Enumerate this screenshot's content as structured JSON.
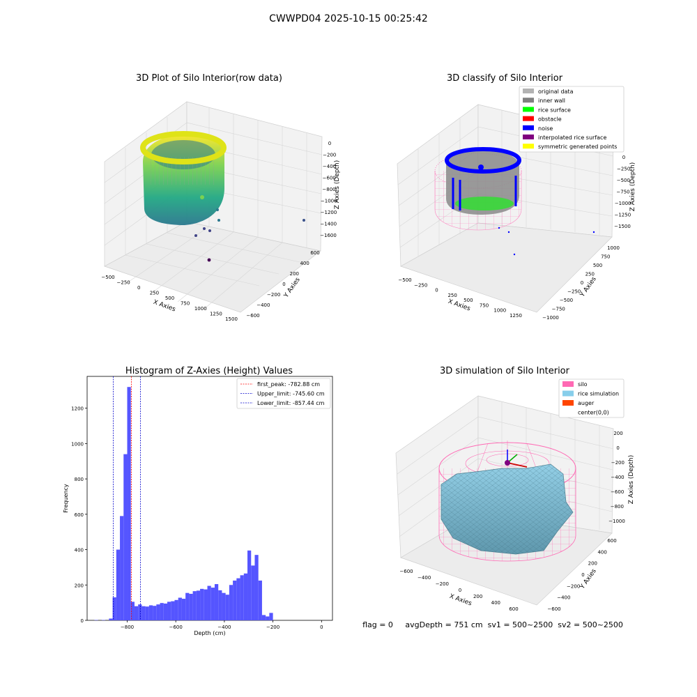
{
  "suptitle": "CWWPD04 2025-10-15 00:25:42",
  "footer": "flag = 0     avgDepth = 751 cm  sv1 = 500~2500  sv2 = 500~2500",
  "colors": {
    "silo": "#ff69b4",
    "rice": "#87ceeb",
    "auger": "#ff4500",
    "hist_bar": "#5555ff",
    "first_peak_line": "#ff0000",
    "limit_line": "#0000cc",
    "original": "#b3b3b3",
    "inner_wall": "#808080",
    "rice_surface": "#00ff00",
    "obstacle": "#ff0000",
    "noise": "#0000ff",
    "interp": "#800080",
    "symmetric": "#ffff00"
  },
  "chart_data": [
    {
      "type": "scatter",
      "title": "3D Plot of Silo Interior(row data)",
      "xlabel": "X Axies",
      "ylabel": "Y Axies",
      "zlabel": "Z Axies (Depth)",
      "x_ticks": [
        "−500",
        "−250",
        "0",
        "250",
        "500",
        "750",
        "1000",
        "1250",
        "1500"
      ],
      "y_ticks": [
        "−600",
        "−400",
        "−200",
        "0",
        "200",
        "400",
        "600"
      ],
      "z_ticks": [
        "0",
        "−200",
        "−400",
        "−600",
        "−800",
        "−1000",
        "−1200",
        "−1400",
        "−1600"
      ],
      "colormap": "viridis"
    },
    {
      "type": "scatter",
      "title": "3D classify of Silo Interior",
      "xlabel": "X Axies",
      "ylabel": "Y Axies",
      "zlabel": "Z Axies (Depth)",
      "x_ticks": [
        "−500",
        "−250",
        "0",
        "250",
        "500",
        "750",
        "1000",
        "1250"
      ],
      "y_ticks": [
        "−1000",
        "−750",
        "−500",
        "−250",
        "0",
        "250",
        "500",
        "750",
        "1000"
      ],
      "z_ticks": [
        "0",
        "−250",
        "−500",
        "−750",
        "−1000",
        "−1250",
        "−1500"
      ],
      "legend_position": "top-right",
      "legend": [
        {
          "label": "original data",
          "color": "#b3b3b3"
        },
        {
          "label": "inner wall",
          "color": "#808080"
        },
        {
          "label": "rice surface",
          "color": "#00ff00"
        },
        {
          "label": "obstacle",
          "color": "#ff0000"
        },
        {
          "label": "noise",
          "color": "#0000ff"
        },
        {
          "label": "interpolated rice surface",
          "color": "#800080"
        },
        {
          "label": "symmetric generated points",
          "color": "#ffff00"
        }
      ]
    },
    {
      "type": "bar",
      "title": "Histogram of Z-Axies (Height) Values",
      "xlabel": "Depth (cm)",
      "ylabel": "Frequency",
      "xlim": [
        -965,
        45
      ],
      "ylim": [
        0,
        1380
      ],
      "x_ticks": [
        -800,
        -600,
        -400,
        -200,
        0
      ],
      "y_ticks": [
        0,
        200,
        400,
        600,
        800,
        1000,
        1200
      ],
      "bin_width": 15,
      "bins": [
        [
          -935,
          2
        ],
        [
          -920,
          0
        ],
        [
          -905,
          2
        ],
        [
          -890,
          0
        ],
        [
          -875,
          10
        ],
        [
          -860,
          130
        ],
        [
          -845,
          400
        ],
        [
          -830,
          590
        ],
        [
          -815,
          940
        ],
        [
          -800,
          1320
        ],
        [
          -785,
          105
        ],
        [
          -770,
          80
        ],
        [
          -755,
          90
        ],
        [
          -740,
          80
        ],
        [
          -725,
          78
        ],
        [
          -710,
          85
        ],
        [
          -695,
          82
        ],
        [
          -680,
          90
        ],
        [
          -665,
          98
        ],
        [
          -650,
          95
        ],
        [
          -635,
          105
        ],
        [
          -620,
          108
        ],
        [
          -605,
          115
        ],
        [
          -590,
          128
        ],
        [
          -575,
          122
        ],
        [
          -560,
          155
        ],
        [
          -545,
          150
        ],
        [
          -530,
          165
        ],
        [
          -515,
          168
        ],
        [
          -500,
          178
        ],
        [
          -485,
          175
        ],
        [
          -470,
          195
        ],
        [
          -455,
          185
        ],
        [
          -440,
          205
        ],
        [
          -425,
          170
        ],
        [
          -410,
          155
        ],
        [
          -395,
          145
        ],
        [
          -380,
          200
        ],
        [
          -365,
          225
        ],
        [
          -350,
          238
        ],
        [
          -335,
          255
        ],
        [
          -320,
          265
        ],
        [
          -305,
          395
        ],
        [
          -290,
          310
        ],
        [
          -275,
          370
        ],
        [
          -260,
          225
        ],
        [
          -245,
          30
        ],
        [
          -230,
          22
        ],
        [
          -215,
          42
        ]
      ],
      "vlines": [
        {
          "label": "first_peak: -782.88 cm",
          "x": -782.88,
          "color": "#ff0000"
        },
        {
          "label": "Upper_limit: -745.60 cm",
          "x": -745.6,
          "color": "#0000cc"
        },
        {
          "label": "Lower_limit: -857.44 cm",
          "x": -857.44,
          "color": "#0000cc"
        }
      ],
      "legend_position": "top-right"
    },
    {
      "type": "area",
      "title": "3D simulation of Silo Interior",
      "xlabel": "X Axies",
      "ylabel": "Y Axies",
      "zlabel": "Z Axies (Depth)",
      "x_ticks": [
        "−600",
        "−400",
        "−200",
        "0",
        "200",
        "400",
        "600"
      ],
      "y_ticks": [
        "−600",
        "−400",
        "−200",
        "0",
        "200",
        "400",
        "600"
      ],
      "z_ticks": [
        "200",
        "0",
        "−200",
        "−400",
        "−600",
        "−800",
        "−1000"
      ],
      "legend_position": "top-right",
      "legend": [
        {
          "label": "silo",
          "color": "#ff69b4"
        },
        {
          "label": "rice simulation",
          "color": "#87ceeb"
        },
        {
          "label": "auger",
          "color": "#ff4500"
        },
        {
          "label": "center(0,0)",
          "color": ""
        }
      ]
    }
  ]
}
